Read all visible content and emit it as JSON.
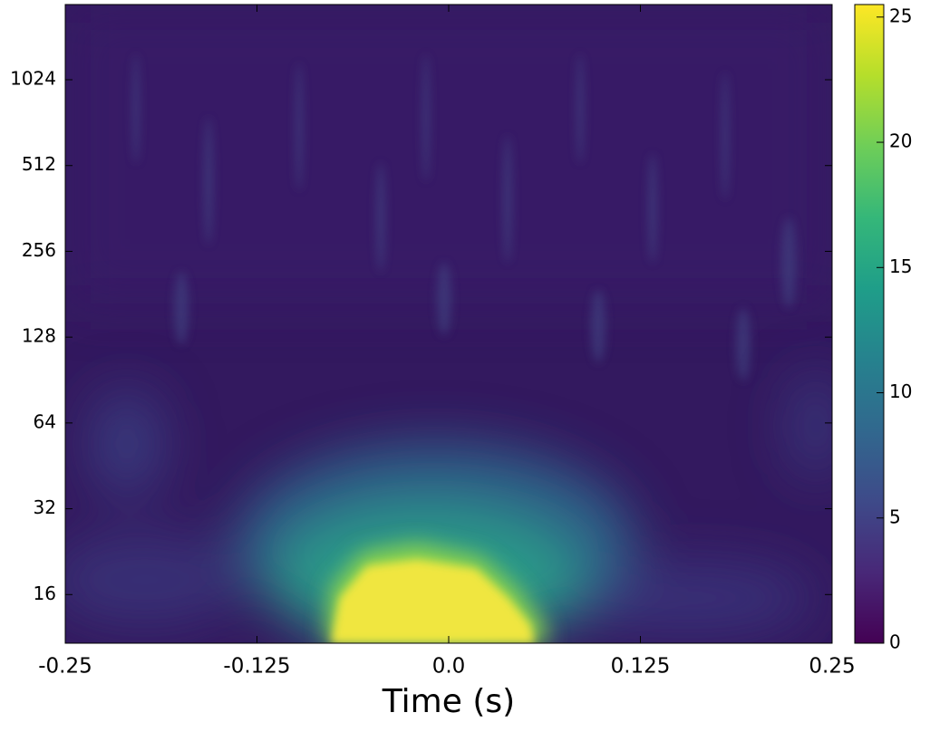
{
  "chart_data": {
    "type": "heatmap",
    "xlabel": "Time (s)",
    "xlim": [
      -0.25,
      0.25
    ],
    "xticks": [
      -0.25,
      -0.125,
      {
        "value": 0,
        "label": "0.0"
      },
      0.125,
      0.25
    ],
    "yscale": "log",
    "ylim": [
      10.8,
      1880
    ],
    "yticks": [
      16,
      32,
      64,
      128,
      256,
      512,
      1024
    ],
    "clim": [
      0,
      25.5
    ],
    "cticks": [
      0,
      5,
      10,
      15,
      20,
      25
    ],
    "colorbar_colors": [
      "#440154",
      "#482878",
      "#3e4a89",
      "#31688e",
      "#26828e",
      "#1f9e89",
      "#35b779",
      "#6ece58",
      "#b5de2b",
      "#fde725"
    ]
  }
}
